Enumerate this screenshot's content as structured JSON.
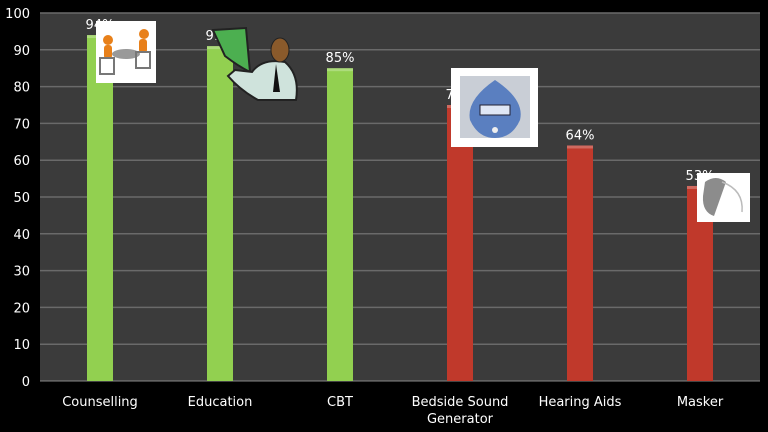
{
  "chart_data": {
    "type": "bar",
    "title": "",
    "xlabel": "",
    "ylabel": "",
    "ylim": [
      0,
      100
    ],
    "yticks": [
      "0",
      "10",
      "20",
      "30",
      "40",
      "50",
      "60",
      "70",
      "80",
      "90",
      "100"
    ],
    "grid": true,
    "categories": [
      "Counselling",
      "Education",
      "CBT",
      "Bedside Sound Generator",
      "Hearing Aids",
      "Masker"
    ],
    "category_lines": [
      [
        "Counselling"
      ],
      [
        "Education"
      ],
      [
        "CBT"
      ],
      [
        "Bedside Sound",
        "Generator"
      ],
      [
        "Hearing Aids"
      ],
      [
        "Masker"
      ]
    ],
    "values": [
      94,
      91,
      85,
      75,
      64,
      53
    ],
    "data_labels": [
      "94%",
      "91%",
      "85%",
      "75%",
      "64%",
      "53%"
    ],
    "bar_colors": [
      "#92d050",
      "#92d050",
      "#92d050",
      "#c0392b",
      "#c0392b",
      "#c0392b"
    ],
    "illustrations": [
      "meeting-clipart",
      "presenter-clipart",
      "sound-generator-photo",
      "hearing-aid-photo"
    ]
  },
  "colors": {
    "background": "#000000",
    "plot": "#3b3b3b",
    "grid": "#6a6a6a",
    "green": "#92d050",
    "red": "#c0392b"
  }
}
